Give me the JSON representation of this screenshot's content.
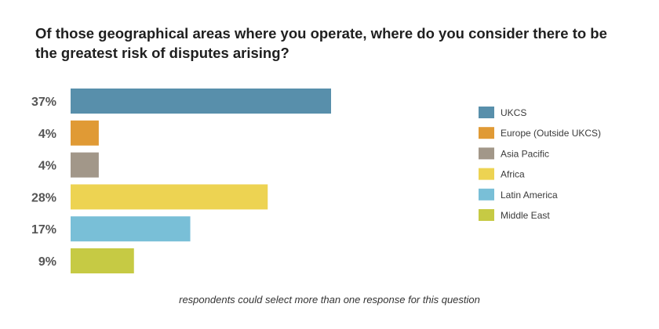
{
  "chart_data": {
    "type": "bar",
    "orientation": "horizontal",
    "title": "Of those geographical areas where you operate, where do you consider there to be the greatest risk of disputes arising?",
    "categories": [
      "UKCS",
      "Europe (Outside UKCS)",
      "Asia Pacific",
      "Africa",
      "Latin America",
      "Middle East"
    ],
    "values": [
      37,
      4,
      4,
      28,
      17,
      9
    ],
    "value_labels": [
      "37%",
      "4%",
      "4%",
      "28%",
      "17%",
      "9%"
    ],
    "colors": [
      "#588fab",
      "#e09a35",
      "#a29789",
      "#edd352",
      "#79bfd7",
      "#c6ca44"
    ],
    "xlim": [
      0,
      37
    ],
    "grid": false,
    "legend_placement": "right",
    "footnote": "respondents could select more than one response for this question"
  }
}
